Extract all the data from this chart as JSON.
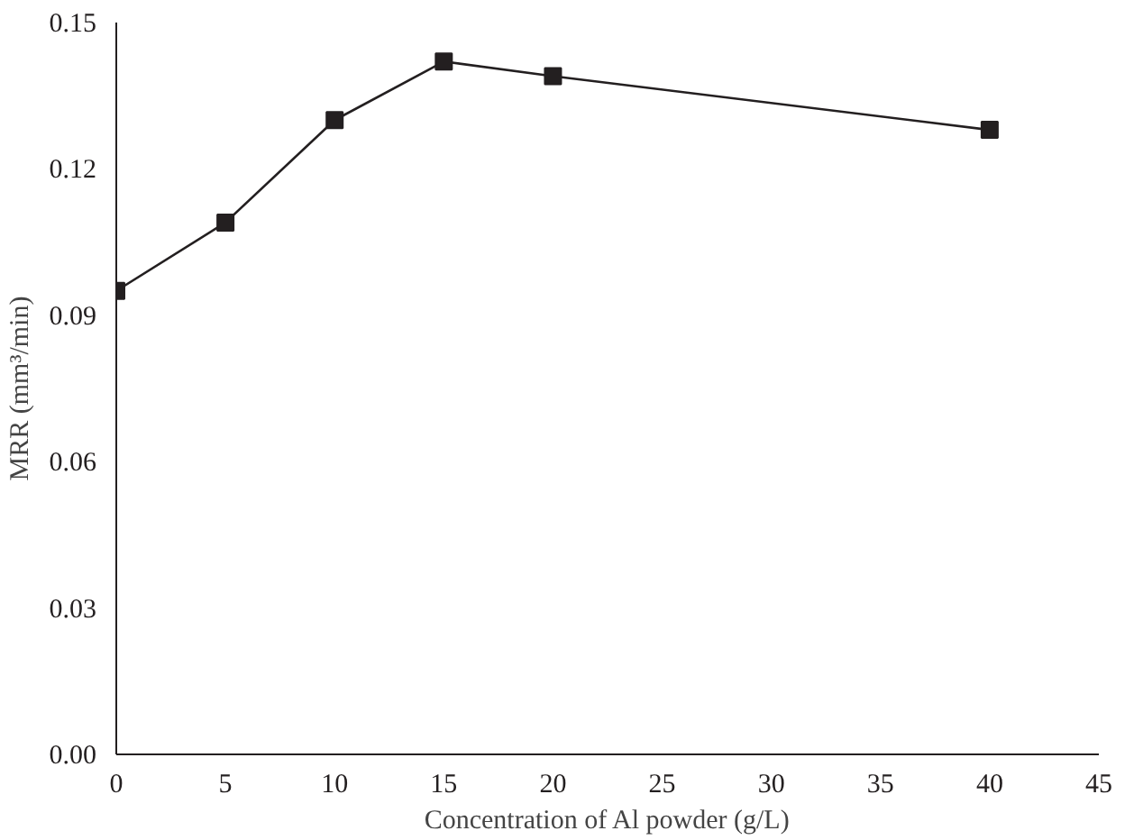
{
  "chart_data": {
    "type": "line",
    "xlabel": "Concentration of Al powder (g/L)",
    "ylabel": "MRR (mm³/min)",
    "x": [
      0,
      5,
      10,
      15,
      20,
      40
    ],
    "series": [
      {
        "color": "#231f20",
        "values": [
          0.095,
          0.109,
          0.13,
          0.142,
          0.139,
          0.128
        ]
      }
    ],
    "xlim": [
      0,
      45
    ],
    "xticks": [
      0,
      5,
      10,
      15,
      20,
      25,
      30,
      35,
      40,
      45
    ],
    "ylim": [
      0,
      0.15
    ],
    "yticks": [
      {
        "value": 0,
        "label": "0.00"
      },
      {
        "value": 0.03,
        "label": "0.03"
      },
      {
        "value": 0.06,
        "label": "0.06"
      },
      {
        "value": 0.09,
        "label": "0.09"
      },
      {
        "value": 0.12,
        "label": "0.12"
      },
      {
        "value": 0.15,
        "label": "0.15"
      }
    ],
    "marker": "square",
    "line_style": "solid"
  }
}
